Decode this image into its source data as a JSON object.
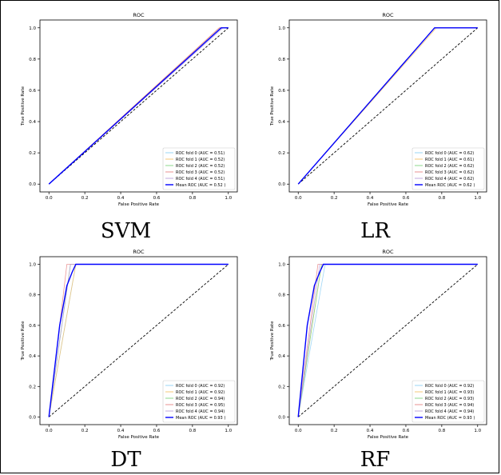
{
  "colors": {
    "fold0": "#8fd0f5",
    "fold1": "#f5c26b",
    "fold2": "#7fd67f",
    "fold3": "#e88585",
    "fold4": "#b9a0d8",
    "mean": "#0000ff",
    "chance": "#000000"
  },
  "chart_data": [
    {
      "type": "line",
      "caption": "SVM",
      "title": "ROC",
      "xlabel": "False Positive Rate",
      "ylabel": "True Positive Rate",
      "xlim": [
        0,
        1
      ],
      "ylim": [
        0,
        1
      ],
      "xticks": [
        "0.0",
        "0.2",
        "0.4",
        "0.6",
        "0.8",
        "1.0"
      ],
      "yticks": [
        "0.0",
        "0.2",
        "0.4",
        "0.6",
        "0.8",
        "1.0"
      ],
      "grid": false,
      "legend_position": "lower-right",
      "series": [
        {
          "name": "ROC fold 0 (AUC = 0.51)",
          "color_key": "fold0",
          "x": [
            0,
            0.96,
            1
          ],
          "y": [
            0,
            1,
            1
          ]
        },
        {
          "name": "ROC fold 1 (AUC = 0.52)",
          "color_key": "fold1",
          "x": [
            0,
            0.95,
            1
          ],
          "y": [
            0,
            1,
            1
          ]
        },
        {
          "name": "ROC fold 2 (AUC = 0.52)",
          "color_key": "fold2",
          "x": [
            0,
            0.96,
            1
          ],
          "y": [
            0,
            1,
            1
          ]
        },
        {
          "name": "ROC fold 3 (AUC = 0.52)",
          "color_key": "fold3",
          "x": [
            0,
            0.95,
            1
          ],
          "y": [
            0,
            1,
            1
          ]
        },
        {
          "name": "ROC fold 4 (AUC = 0.51)",
          "color_key": "fold4",
          "x": [
            0,
            0.97,
            1
          ],
          "y": [
            0,
            1,
            1
          ]
        },
        {
          "name": "Mean ROC (AUC = 0.52 )",
          "color_key": "mean",
          "x": [
            0,
            0.96,
            1
          ],
          "y": [
            0,
            1,
            1
          ],
          "mean": true
        }
      ]
    },
    {
      "type": "line",
      "caption": "LR",
      "title": "ROC",
      "xlabel": "False Positive Rate",
      "ylabel": "True Positive Rate",
      "xlim": [
        0,
        1
      ],
      "ylim": [
        0,
        1
      ],
      "xticks": [
        "0.0",
        "0.2",
        "0.4",
        "0.6",
        "0.8",
        "1.0"
      ],
      "yticks": [
        "0.0",
        "0.2",
        "0.4",
        "0.6",
        "0.8",
        "1.0"
      ],
      "grid": false,
      "legend_position": "lower-right",
      "series": [
        {
          "name": "ROC fold 0 (AUC = 0.62)",
          "color_key": "fold0",
          "x": [
            0,
            0.76,
            1
          ],
          "y": [
            0,
            1,
            1
          ]
        },
        {
          "name": "ROC fold 1 (AUC = 0.61)",
          "color_key": "fold1",
          "x": [
            0,
            0.77,
            1
          ],
          "y": [
            0,
            1,
            1
          ]
        },
        {
          "name": "ROC fold 2 (AUC = 0.62)",
          "color_key": "fold2",
          "x": [
            0,
            0.76,
            1
          ],
          "y": [
            0,
            1,
            1
          ]
        },
        {
          "name": "ROC fold 3 (AUC = 0.62)",
          "color_key": "fold3",
          "x": [
            0,
            0.76,
            1
          ],
          "y": [
            0,
            1,
            1
          ]
        },
        {
          "name": "ROC fold 4 (AUC = 0.62)",
          "color_key": "fold4",
          "x": [
            0,
            0.76,
            1
          ],
          "y": [
            0,
            1,
            1
          ]
        },
        {
          "name": "Mean ROC (AUC = 0.62 )",
          "color_key": "mean",
          "x": [
            0,
            0.76,
            1
          ],
          "y": [
            0,
            1,
            1
          ],
          "mean": true
        }
      ]
    },
    {
      "type": "line",
      "caption": "DT",
      "title": "ROC",
      "xlabel": "False Positive Rate",
      "ylabel": "True Positive Rate",
      "xlim": [
        0,
        1
      ],
      "ylim": [
        0,
        1
      ],
      "xticks": [
        "0.0",
        "0.2",
        "0.4",
        "0.6",
        "0.8",
        "1.0"
      ],
      "yticks": [
        "0.0",
        "0.2",
        "0.4",
        "0.6",
        "0.8",
        "1.0"
      ],
      "grid": false,
      "legend_position": "lower-right",
      "series": [
        {
          "name": "ROC fold 0 (AUC = 0.92)",
          "color_key": "fold0",
          "x": [
            0,
            0.15,
            1
          ],
          "y": [
            0,
            1,
            1
          ]
        },
        {
          "name": "ROC fold 1 (AUC = 0.92)",
          "color_key": "fold1",
          "x": [
            0,
            0.15,
            1
          ],
          "y": [
            0,
            1,
            1
          ]
        },
        {
          "name": "ROC fold 2 (AUC = 0.94)",
          "color_key": "fold2",
          "x": [
            0,
            0.12,
            1
          ],
          "y": [
            0,
            1,
            1
          ]
        },
        {
          "name": "ROC fold 3 (AUC = 0.95)",
          "color_key": "fold3",
          "x": [
            0,
            0.1,
            1
          ],
          "y": [
            0,
            1,
            1
          ]
        },
        {
          "name": "ROC fold 4 (AUC = 0.94)",
          "color_key": "fold4",
          "x": [
            0,
            0.12,
            1
          ],
          "y": [
            0,
            1,
            1
          ]
        },
        {
          "name": "Mean ROC (AUC = 0.93 )",
          "color_key": "mean",
          "x": [
            0,
            0.06,
            0.1,
            0.13,
            0.15,
            1
          ],
          "y": [
            0,
            0.6,
            0.86,
            0.95,
            1,
            1
          ],
          "mean": true
        }
      ]
    },
    {
      "type": "line",
      "caption": "RF",
      "title": "ROC",
      "xlabel": "False Positive Rate",
      "ylabel": "True Positive Rate",
      "xlim": [
        0,
        1
      ],
      "ylim": [
        0,
        1
      ],
      "xticks": [
        "0.0",
        "0.2",
        "0.4",
        "0.6",
        "0.8",
        "1.0"
      ],
      "yticks": [
        "0.0",
        "0.2",
        "0.4",
        "0.6",
        "0.8",
        "1.0"
      ],
      "grid": false,
      "legend_position": "lower-right",
      "series": [
        {
          "name": "ROC fold 0 (AUC = 0.92)",
          "color_key": "fold0",
          "x": [
            0,
            0.15,
            1
          ],
          "y": [
            0,
            1,
            1
          ]
        },
        {
          "name": "ROC fold 1 (AUC = 0.93)",
          "color_key": "fold1",
          "x": [
            0,
            0.13,
            1
          ],
          "y": [
            0,
            1,
            1
          ]
        },
        {
          "name": "ROC fold 2 (AUC = 0.93)",
          "color_key": "fold2",
          "x": [
            0,
            0.13,
            1
          ],
          "y": [
            0,
            1,
            1
          ]
        },
        {
          "name": "ROC fold 3 (AUC = 0.94)",
          "color_key": "fold3",
          "x": [
            0,
            0.11,
            1
          ],
          "y": [
            0,
            1,
            1
          ]
        },
        {
          "name": "ROC fold 4 (AUC = 0.94)",
          "color_key": "fold4",
          "x": [
            0,
            0.12,
            1
          ],
          "y": [
            0,
            1,
            1
          ]
        },
        {
          "name": "Mean ROC (AUC = 0.93 )",
          "color_key": "mean",
          "x": [
            0,
            0.05,
            0.09,
            0.12,
            0.14,
            1
          ],
          "y": [
            0,
            0.6,
            0.86,
            0.95,
            1,
            1
          ],
          "mean": true
        }
      ]
    }
  ]
}
